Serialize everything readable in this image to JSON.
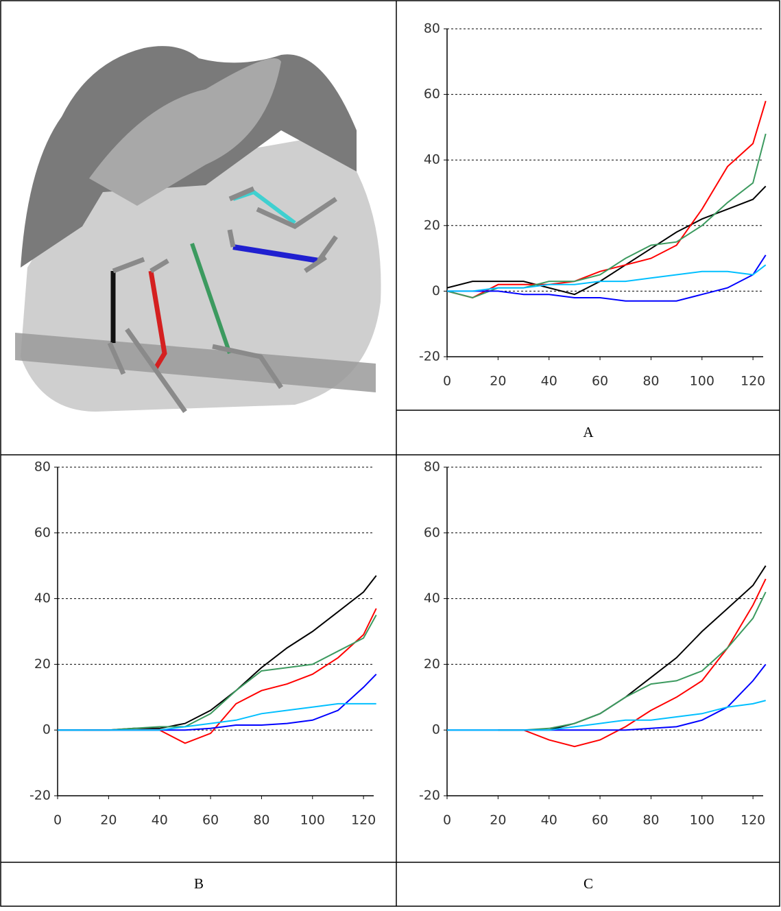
{
  "chart_data": [
    {
      "type": "line",
      "title": "A",
      "x": [
        0,
        10,
        20,
        30,
        40,
        50,
        60,
        70,
        80,
        90,
        100,
        110,
        120,
        125
      ],
      "series": [
        {
          "color": "#000000",
          "values": [
            1,
            3,
            3,
            3,
            1,
            -1,
            3,
            8,
            13,
            18,
            22,
            25,
            28,
            32
          ]
        },
        {
          "color": "#ff0000",
          "values": [
            0,
            -2,
            2,
            2,
            2,
            3,
            6,
            8,
            10,
            14,
            25,
            38,
            45,
            58
          ]
        },
        {
          "color": "#3c9a5f",
          "values": [
            0,
            -2,
            1,
            1,
            3,
            3,
            5,
            10,
            14,
            15,
            20,
            27,
            33,
            48
          ]
        },
        {
          "color": "#0000ff",
          "values": [
            0,
            0,
            0,
            -1,
            -1,
            -2,
            -2,
            -3,
            -3,
            -3,
            -1,
            1,
            5,
            11
          ]
        },
        {
          "color": "#00bfff",
          "values": [
            0,
            0,
            1,
            1,
            2,
            2,
            3,
            3,
            4,
            5,
            6,
            6,
            5,
            8
          ]
        }
      ],
      "xlim": [
        0,
        124
      ],
      "xticks": [
        0,
        20,
        40,
        60,
        80,
        100,
        120
      ],
      "ylim": [
        -20,
        80
      ],
      "yticks": [
        -20,
        0,
        20,
        40,
        60,
        80
      ],
      "grid": true
    },
    {
      "type": "line",
      "title": "B",
      "x": [
        0,
        10,
        20,
        30,
        40,
        50,
        60,
        70,
        80,
        90,
        100,
        110,
        120,
        125
      ],
      "series": [
        {
          "color": "#000000",
          "values": [
            0,
            0,
            0,
            0.5,
            0.5,
            2,
            6,
            12,
            19,
            25,
            30,
            36,
            42,
            47
          ]
        },
        {
          "color": "#ff0000",
          "values": [
            null,
            0,
            0,
            0,
            0,
            -4,
            -1,
            8,
            12,
            14,
            17,
            22,
            29,
            37
          ]
        },
        {
          "color": "#3c9a5f",
          "values": [
            null,
            null,
            0,
            0.5,
            1,
            1,
            5,
            12,
            18,
            19,
            20,
            24,
            28,
            35
          ]
        },
        {
          "color": "#0000ff",
          "values": [
            0,
            0,
            0,
            0,
            0,
            0,
            0.5,
            1.5,
            1.5,
            2,
            3,
            6,
            13,
            17
          ]
        },
        {
          "color": "#00bfff",
          "values": [
            0,
            0,
            0,
            0,
            0,
            1,
            2,
            3,
            5,
            6,
            7,
            8,
            8,
            8
          ]
        }
      ],
      "xlim": [
        0,
        124
      ],
      "xticks": [
        0,
        20,
        40,
        60,
        80,
        100,
        120
      ],
      "ylim": [
        -20,
        80
      ],
      "yticks": [
        -20,
        0,
        20,
        40,
        60,
        80
      ],
      "grid": true
    },
    {
      "type": "line",
      "title": "C",
      "x": [
        0,
        10,
        20,
        30,
        40,
        50,
        60,
        70,
        80,
        90,
        100,
        110,
        120,
        125
      ],
      "series": [
        {
          "color": "#000000",
          "values": [
            null,
            null,
            null,
            null,
            0,
            2,
            5,
            10,
            16,
            22,
            30,
            37,
            44,
            50
          ]
        },
        {
          "color": "#ff0000",
          "values": [
            null,
            null,
            0,
            0,
            -3,
            -5,
            -3,
            1,
            6,
            10,
            15,
            25,
            38,
            46
          ]
        },
        {
          "color": "#3c9a5f",
          "values": [
            null,
            null,
            0,
            0,
            0.5,
            2,
            5,
            10,
            14,
            15,
            18,
            25,
            34,
            42
          ]
        },
        {
          "color": "#0000ff",
          "values": [
            0,
            0,
            0,
            0,
            0,
            0,
            0,
            0,
            0.5,
            1,
            3,
            7,
            15,
            20
          ]
        },
        {
          "color": "#00bfff",
          "values": [
            0,
            0,
            0,
            0,
            0,
            1,
            2,
            3,
            3,
            4,
            5,
            7,
            8,
            9
          ]
        }
      ],
      "xlim": [
        0,
        124
      ],
      "xticks": [
        0,
        20,
        40,
        60,
        80,
        100,
        120
      ],
      "ylim": [
        -20,
        80
      ],
      "yticks": [
        -20,
        0,
        20,
        40,
        60,
        80
      ],
      "grid": true
    }
  ]
}
